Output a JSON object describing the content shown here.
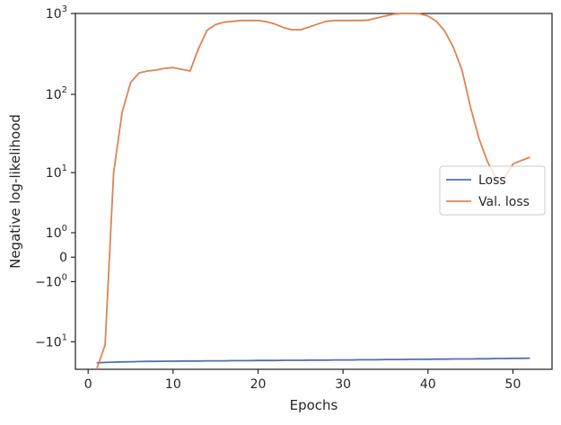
{
  "chart_data": {
    "type": "line",
    "xlabel": "Epochs",
    "ylabel": "Negative log-likelihood",
    "xlim": [
      -1.5,
      54.6
    ],
    "ylim": [
      -23,
      1000
    ],
    "yscale": "symlog",
    "ylinthresh": 1,
    "grid": false,
    "legend_position": "center-right",
    "x_ticks": [
      0,
      10,
      20,
      30,
      40,
      50
    ],
    "x_tick_labels": [
      "0",
      "10",
      "20",
      "30",
      "40",
      "50"
    ],
    "y_ticks": [
      1000,
      100,
      10,
      1,
      0,
      -1,
      -10
    ],
    "y_tick_labels": [
      {
        "base": "10",
        "exp": "3"
      },
      {
        "base": "10",
        "exp": "2"
      },
      {
        "base": "10",
        "exp": "1"
      },
      {
        "base": "10",
        "exp": "0"
      },
      {
        "base": "0",
        "exp": ""
      },
      {
        "base": "−10",
        "exp": "0"
      },
      {
        "base": "−10",
        "exp": "1"
      }
    ],
    "x": [
      1,
      2,
      3,
      4,
      5,
      6,
      7,
      8,
      9,
      10,
      11,
      12,
      13,
      14,
      15,
      16,
      17,
      18,
      19,
      20,
      21,
      22,
      23,
      24,
      25,
      26,
      27,
      28,
      29,
      30,
      31,
      32,
      33,
      34,
      35,
      36,
      37,
      38,
      39,
      40,
      41,
      42,
      43,
      44,
      45,
      46,
      47,
      48,
      49,
      50,
      51,
      52
    ],
    "series": [
      {
        "name": "Loss",
        "color": "#4c72b0",
        "values": [
          -19.0,
          -18.8,
          -18.6,
          -18.5,
          -18.4,
          -18.3,
          -18.2,
          -18.2,
          -18.1,
          -18.1,
          -18.0,
          -18.0,
          -18.0,
          -17.9,
          -17.9,
          -17.9,
          -17.8,
          -17.8,
          -17.8,
          -17.7,
          -17.7,
          -17.7,
          -17.6,
          -17.6,
          -17.6,
          -17.5,
          -17.5,
          -17.5,
          -17.4,
          -17.4,
          -17.4,
          -17.3,
          -17.3,
          -17.3,
          -17.2,
          -17.2,
          -17.2,
          -17.1,
          -17.1,
          -17.1,
          -17.0,
          -17.0,
          -16.9,
          -16.9,
          -16.9,
          -16.8,
          -16.8,
          -16.7,
          -16.7,
          -16.6,
          -16.6,
          -16.5
        ]
      },
      {
        "name": "Val. loss",
        "color": "#dd8452",
        "values": [
          -23,
          -11,
          10,
          60,
          140,
          185,
          195,
          200,
          210,
          215,
          205,
          195,
          370,
          620,
          730,
          780,
          800,
          820,
          820,
          820,
          790,
          740,
          670,
          630,
          630,
          680,
          740,
          800,
          820,
          820,
          820,
          820,
          830,
          880,
          930,
          980,
          1000,
          1000,
          990,
          930,
          800,
          600,
          380,
          200,
          70,
          28,
          14,
          8.5,
          8.5,
          13,
          14.5,
          16
        ]
      }
    ]
  }
}
